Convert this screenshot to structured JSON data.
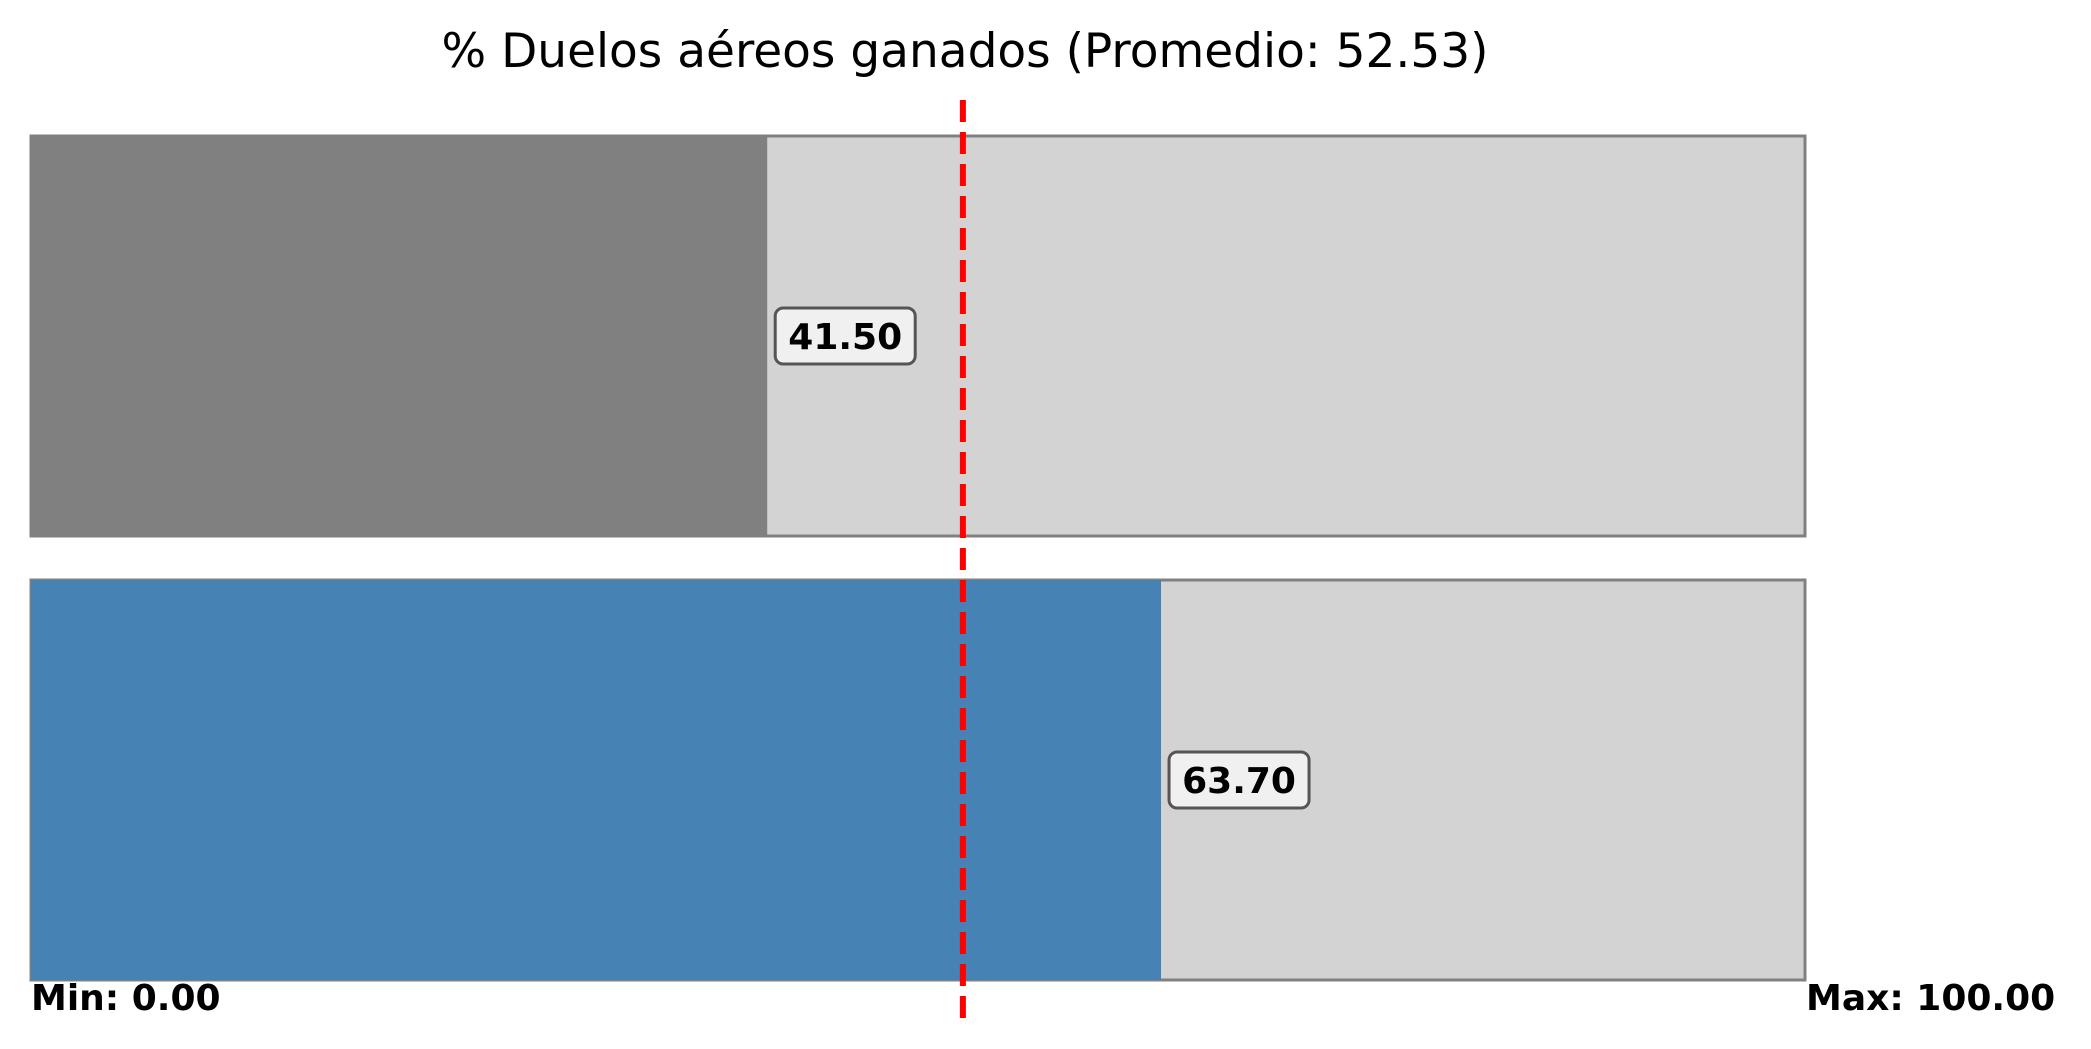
{
  "chart_data": {
    "type": "bar",
    "orientation": "horizontal",
    "title": "% Duelos aéreos ganados (Promedio: 52.53)",
    "xlim": [
      0,
      100
    ],
    "average": 52.53,
    "bars": [
      {
        "value": 41.5,
        "label": "41.50",
        "color": "#808080"
      },
      {
        "value": 63.7,
        "label": "63.70",
        "color": "#4682b4"
      }
    ],
    "track_color": "#d3d3d3",
    "track_border_color": "#808080",
    "average_line_color": "#ff0000",
    "label_box_fill": "#f0f0f0",
    "label_box_border": "#555555",
    "min_label": "Min: 0.00",
    "max_label": "Max: 100.00",
    "grid": false,
    "legend": "none"
  }
}
